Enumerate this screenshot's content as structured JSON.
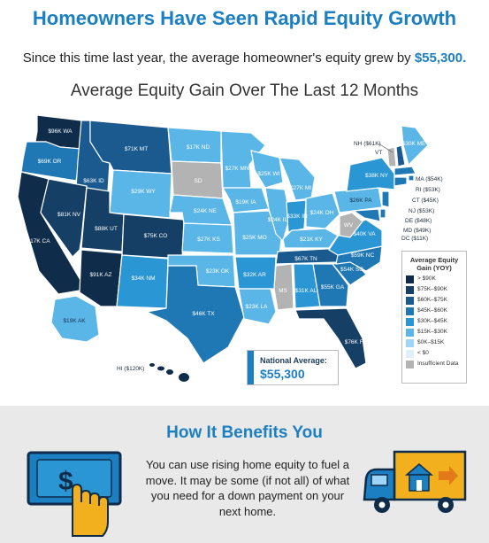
{
  "header": {
    "title": "Homeowners Have Seen Rapid Equity Growth",
    "subtitle_prefix": "Since this time last year, the average homeowner's equity grew by ",
    "subtitle_amount": "$55,300.",
    "map_title": "Average Equity Gain Over The Last 12 Months"
  },
  "colors": {
    "brand_blue": "#1b7fc1",
    "tier_90k_plus": "#0f2d4a",
    "tier_75k_90k": "#163f66",
    "tier_60k_75k": "#1b5a8e",
    "tier_45k_60k": "#1f78b4",
    "tier_30k_45k": "#2b96d4",
    "tier_15k_30k": "#5bb6e8",
    "tier_0k_15k": "#9dd6f6",
    "tier_below_0": "#ddf0fb",
    "tier_insufficient": "#b3b3b3"
  },
  "states": {
    "WA": "$96K WA",
    "OR": "$69K OR",
    "CA": "$117K CA",
    "ID": "$63K ID",
    "NV": "$81K NV",
    "MT": "$71K MT",
    "UT": "$88K UT",
    "AZ": "$91K AZ",
    "WY": "$29K WY",
    "CO": "$75K CO",
    "NM": "$34K NM",
    "ND": "$17K ND",
    "SD": "SD",
    "NE": "$24K NE",
    "KS": "$27K KS",
    "OK": "$23K OK",
    "TX": "$46K TX",
    "MN": "$27K MN",
    "IA": "$19K IA",
    "MO": "$25K MO",
    "AR": "$32K AR",
    "LA": "$23K LA",
    "WI": "$25K WI",
    "IL": "$24K IL",
    "MI": "$27K MI",
    "IN": "$33K IN",
    "OH": "$24K OH",
    "KY": "$21K KY",
    "TN": "$67K TN",
    "MS": "MS",
    "AL": "$31K AL",
    "GA": "$55K GA",
    "FL": "$76K FL",
    "SC": "$54K SC",
    "NC": "$59K NC",
    "VA": "$40K VA",
    "WV": "WV",
    "PA": "$26K PA",
    "NY": "$38K NY",
    "ME": "$30K ME",
    "AK": "$19K AK"
  },
  "callouts": {
    "NH": "NH ($61K)",
    "VT": "VT",
    "MA": "MA ($54K)",
    "RI": "RI ($53K)",
    "CT": "CT ($45K)",
    "NJ": "NJ ($53K)",
    "DE": "DE ($48K)",
    "MD": "MD ($49K)",
    "DC": "DC ($11K)",
    "HI": "HI ($120K)"
  },
  "legend": {
    "title": "Average Equity Gain (YOY)",
    "items": [
      {
        "label": "> $90K",
        "color": "#0f2d4a"
      },
      {
        "label": "$75K–$90K",
        "color": "#163f66"
      },
      {
        "label": "$60K–$75K",
        "color": "#1b5a8e"
      },
      {
        "label": "$45K–$60K",
        "color": "#1f78b4"
      },
      {
        "label": "$30K–$45K",
        "color": "#2b96d4"
      },
      {
        "label": "$15K–$30K",
        "color": "#5bb6e8"
      },
      {
        "label": "$0K–$15K",
        "color": "#9dd6f6"
      },
      {
        "label": "< $0",
        "color": "#ddf0fb"
      },
      {
        "label": "Insufficient Data",
        "color": "#b3b3b3"
      }
    ]
  },
  "national_average": {
    "label": "National Average:",
    "value": "$55,300"
  },
  "benefits": {
    "title": "How It Benefits You",
    "text": "You can use rising home equity to fuel a move. It may be some (if not all) of what you need for a down payment on your next home."
  },
  "icons": {
    "cash": "cash-hand-icon",
    "truck": "moving-truck-icon"
  }
}
